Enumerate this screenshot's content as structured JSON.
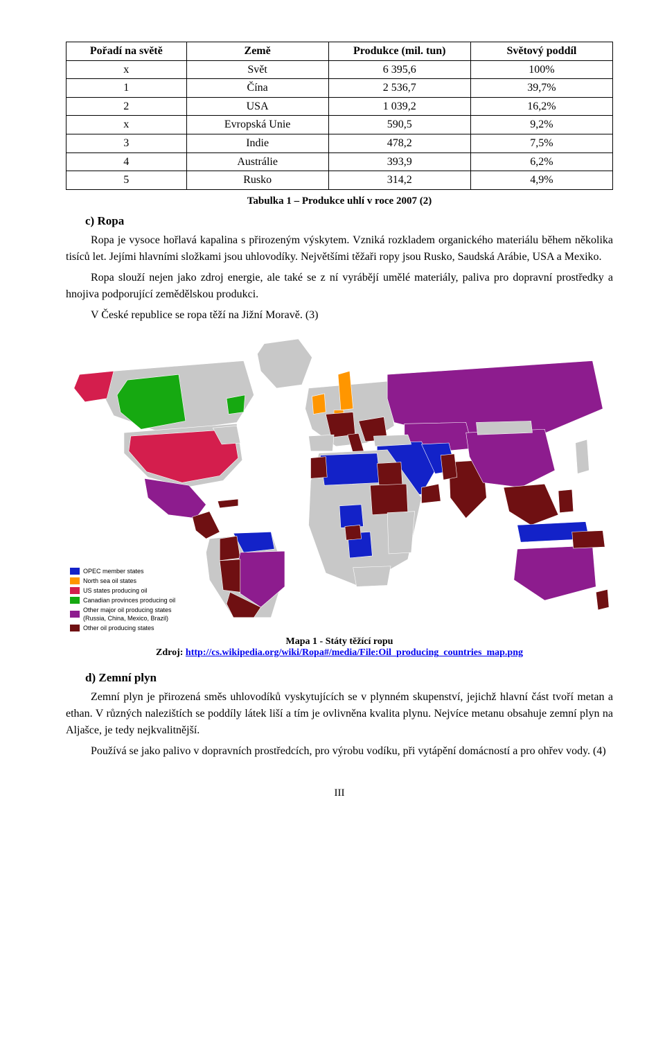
{
  "table": {
    "headers": [
      "Pořadí na světě",
      "Země",
      "Produkce (mil. tun)",
      "Světový poddíl"
    ],
    "rows": [
      {
        "rank": "x",
        "country": "Svět",
        "prod": "6 395,6",
        "share": "100%"
      },
      {
        "rank": "1",
        "country": "Čína",
        "prod": "2 536,7",
        "share": "39,7%"
      },
      {
        "rank": "2",
        "country": "USA",
        "prod": "1 039,2",
        "share": "16,2%"
      },
      {
        "rank": "x",
        "country": "Evropská Unie",
        "prod": "590,5",
        "share": "9,2%"
      },
      {
        "rank": "3",
        "country": "Indie",
        "prod": "478,2",
        "share": "7,5%"
      },
      {
        "rank": "4",
        "country": "Austrálie",
        "prod": "393,9",
        "share": "6,2%"
      },
      {
        "rank": "5",
        "country": "Rusko",
        "prod": "314,2",
        "share": "4,9%"
      }
    ],
    "caption": "Tabulka 1 – Produkce uhlí v roce 2007 (2)"
  },
  "section_c": {
    "heading": "c)  Ropa",
    "p1": "Ropa je vysoce hořlavá kapalina s přirozeným výskytem. Vzniká rozkladem organického materiálu během několika tisíců let. Jejími hlavními složkami jsou uhlovodíky. Největšími těžaři ropy jsou Rusko, Saudská Arábie, USA a Mexiko.",
    "p2": "Ropa slouží nejen jako zdroj energie, ale také se z ní vyrábějí umělé materiály, paliva pro dopravní prostředky a hnojiva podporující zemědělskou produkci.",
    "p3": "V České republice se ropa těží na Jižní Moravě. (3)"
  },
  "map": {
    "caption_title": "Mapa 1 - Státy těžící ropu",
    "caption_source_label": "Zdroj: ",
    "caption_link": "http://cs.wikipedia.org/wiki/Ropa#/media/File:Oil_producing_countries_map.png",
    "colors": {
      "opec": "#1322c8",
      "northsea": "#ff9600",
      "us": "#d41e4d",
      "canada": "#16a911",
      "other_major": "#8d1c8e",
      "other": "#6f1012",
      "none": "#c8c8c8",
      "ocean": "#ffffff"
    },
    "legend": [
      {
        "key": "opec",
        "label": "OPEC member states"
      },
      {
        "key": "northsea",
        "label": "North sea oil states"
      },
      {
        "key": "us",
        "label": "US states producing oil"
      },
      {
        "key": "canada",
        "label": "Canadian provinces producing oil"
      },
      {
        "key": "other_major",
        "label": "Other major oil producing states\n(Russia, China, Mexico, Brazil)"
      },
      {
        "key": "other",
        "label": "Other oil producing states"
      }
    ]
  },
  "section_d": {
    "heading": "d)  Zemní plyn",
    "p1": "Zemní plyn je přirozená směs uhlovodíků vyskytujících se v plynném skupenství, jejichž hlavní část tvoří metan a ethan. V různých nalezištích se poddíly látek liší a tím je ovlivněna kvalita plynu. Nejvíce metanu obsahuje zemní plyn na Aljašce, je tedy nejkvalitnější.",
    "p2": "Používá se jako palivo v dopravních prostředcích, pro výrobu vodíku, při vytápění domácností a pro ohřev vody. (4)"
  },
  "page_number": "III"
}
